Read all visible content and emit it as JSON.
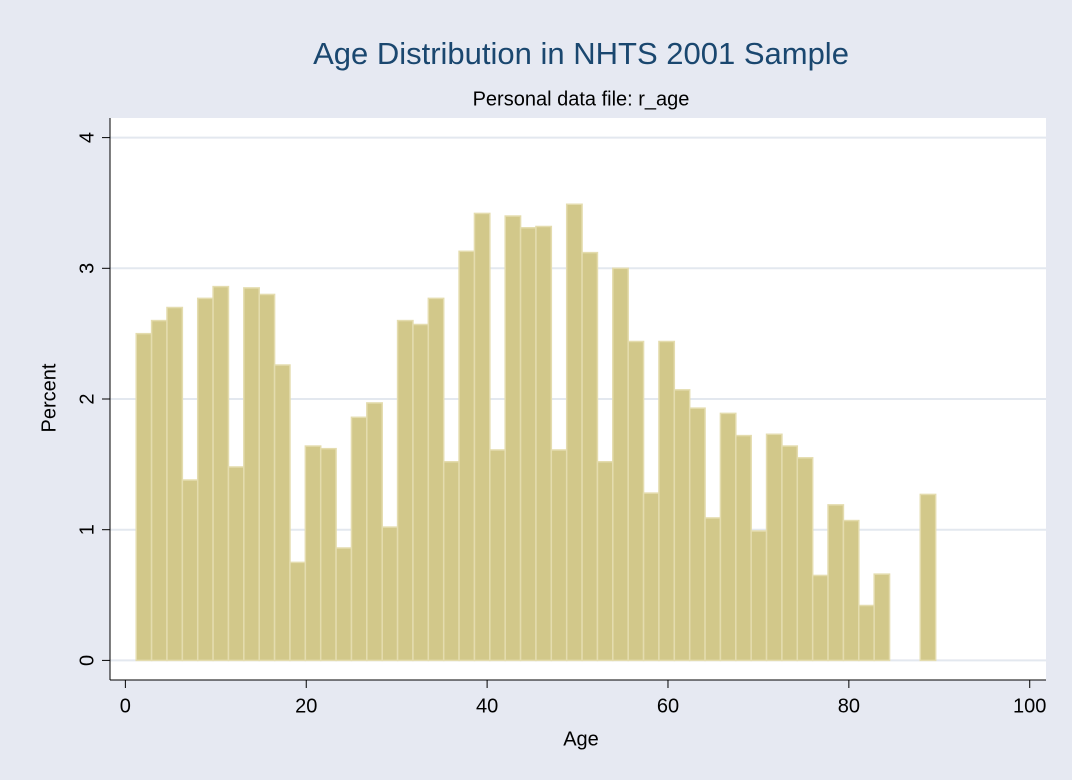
{
  "chart_data": {
    "type": "histogram",
    "title": "Age Distribution in NHTS 2001 Sample",
    "subtitle": "Personal data file: r_age",
    "x_label": "Age",
    "y_label": "Percent",
    "color": "#d2c88a",
    "grid": true,
    "bins": [
      1.2,
      2.9,
      4.6,
      6.3,
      8,
      9.7,
      11.4,
      13.1,
      14.8,
      16.5,
      18.2,
      19.9,
      21.6,
      23.3,
      25,
      26.7,
      28.4,
      30.1,
      31.8,
      33.5,
      35.2,
      36.9,
      38.6,
      40.3,
      42,
      43.7,
      45.4,
      47.1,
      48.8,
      50.5,
      52.2,
      53.9,
      55.6,
      57.3,
      59,
      60.7,
      62.4,
      64.1,
      65.8,
      67.5,
      69.2,
      70.9,
      72.6,
      74.3,
      76,
      77.7,
      79.4,
      81.1,
      82.8,
      84.5,
      86.2,
      87.9,
      89.6
    ],
    "values": [
      2.5,
      2.6,
      2.7,
      1.38,
      2.77,
      2.86,
      1.48,
      2.85,
      2.8,
      2.26,
      0.75,
      1.64,
      1.62,
      0.86,
      1.86,
      1.97,
      1.02,
      2.6,
      2.57,
      2.77,
      1.52,
      3.13,
      3.42,
      1.61,
      3.4,
      3.31,
      3.32,
      1.61,
      3.49,
      3.12,
      1.52,
      3.0,
      2.44,
      1.28,
      2.44,
      2.07,
      1.93,
      1.09,
      1.89,
      1.72,
      0.99,
      1.73,
      1.64,
      1.55,
      0.65,
      1.19,
      1.07,
      0.42,
      0.66,
      0,
      0,
      1.27
    ],
    "xlim": [
      -1.7,
      101.8
    ],
    "xticks": [
      0,
      20,
      40,
      60,
      80,
      100
    ],
    "ylim": [
      -0.15,
      4.15
    ],
    "yticks": [
      0,
      1,
      2,
      3,
      4
    ]
  }
}
